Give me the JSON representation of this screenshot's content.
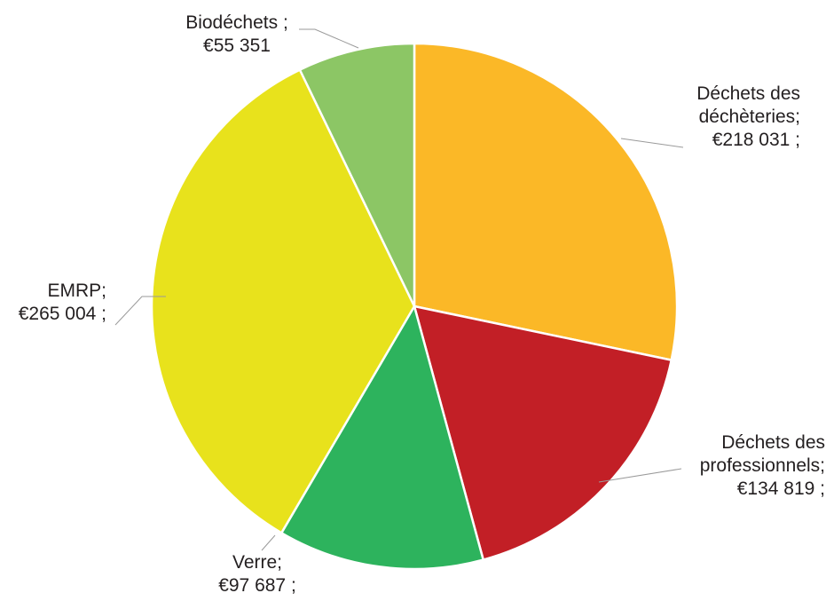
{
  "chart_data": {
    "type": "pie",
    "start_angle_deg": 0,
    "direction": "clockwise",
    "slices": [
      {
        "name": "Déchets des déchèteries",
        "value": 218031,
        "color": "#fbb827",
        "label_lines": [
          "Déchets des",
          "déchèteries;",
          "€218 031 ;"
        ]
      },
      {
        "name": "Déchets des professionnels",
        "value": 134819,
        "color": "#c21f26",
        "label_lines": [
          "Déchets des",
          "professionnels;",
          "€134 819 ;"
        ]
      },
      {
        "name": "Verre",
        "value": 97687,
        "color": "#2db35d",
        "label_lines": [
          "Verre;",
          "€97 687 ;"
        ]
      },
      {
        "name": "EMRP",
        "value": 265004,
        "color": "#e8e21c",
        "label_lines": [
          "EMRP;",
          "€265 004 ;"
        ]
      },
      {
        "name": "Biodéchets",
        "value": 55351,
        "color": "#8cc665",
        "label_lines": [
          "Biodéchets ;",
          "€55 351"
        ]
      }
    ]
  }
}
